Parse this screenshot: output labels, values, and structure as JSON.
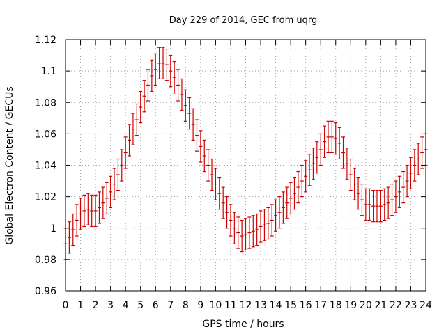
{
  "chart_data": {
    "type": "scatter",
    "title": "Day 229 of 2014, GEC from uqrg",
    "xlabel": "GPS time / hours",
    "ylabel": "Global Electron Content / GECUs",
    "xlim": [
      0,
      24
    ],
    "ylim": [
      0.96,
      1.12
    ],
    "xticks": [
      0,
      1,
      2,
      3,
      4,
      5,
      6,
      7,
      8,
      9,
      10,
      11,
      12,
      13,
      14,
      15,
      16,
      17,
      18,
      19,
      20,
      21,
      22,
      23,
      24
    ],
    "xtick_labels": [
      "0",
      "1",
      "2",
      "3",
      "4",
      "5",
      "6",
      "7",
      "8",
      "9",
      "10",
      "11",
      "12",
      "13",
      "14",
      "15",
      "16",
      "17",
      "18",
      "19",
      "20",
      "21",
      "22",
      "23",
      "24"
    ],
    "yticks": [
      0.96,
      0.98,
      1.0,
      1.02,
      1.04,
      1.06,
      1.08,
      1.1,
      1.12
    ],
    "ytick_labels": [
      "0.96",
      "0.98",
      "1",
      "1.02",
      "1.04",
      "1.06",
      "1.08",
      "1.1",
      "1.12"
    ],
    "grid": true,
    "error": 0.01,
    "series_color": "#cc0000",
    "x": [
      0,
      0.25,
      0.5,
      0.75,
      1,
      1.25,
      1.5,
      1.75,
      2,
      2.25,
      2.5,
      2.75,
      3,
      3.25,
      3.5,
      3.75,
      4,
      4.25,
      4.5,
      4.75,
      5,
      5.25,
      5.5,
      5.75,
      6,
      6.25,
      6.5,
      6.75,
      7,
      7.25,
      7.5,
      7.75,
      8,
      8.25,
      8.5,
      8.75,
      9,
      9.25,
      9.5,
      9.75,
      10,
      10.25,
      10.5,
      10.75,
      11,
      11.25,
      11.5,
      11.75,
      12,
      12.25,
      12.5,
      12.75,
      13,
      13.25,
      13.5,
      13.75,
      14,
      14.25,
      14.5,
      14.75,
      15,
      15.25,
      15.5,
      15.75,
      16,
      16.25,
      16.5,
      16.75,
      17,
      17.25,
      17.5,
      17.75,
      18,
      18.25,
      18.5,
      18.75,
      19,
      19.25,
      19.5,
      19.75,
      20,
      20.25,
      20.5,
      20.75,
      21,
      21.25,
      21.5,
      21.75,
      22,
      22.25,
      22.5,
      22.75,
      23,
      23.25,
      23.5,
      23.75,
      24
    ],
    "y": [
      0.99,
      0.994,
      0.999,
      1.005,
      1.009,
      1.011,
      1.012,
      1.011,
      1.011,
      1.013,
      1.016,
      1.019,
      1.023,
      1.028,
      1.034,
      1.04,
      1.048,
      1.056,
      1.063,
      1.069,
      1.077,
      1.084,
      1.091,
      1.097,
      1.101,
      1.105,
      1.105,
      1.104,
      1.1,
      1.096,
      1.091,
      1.085,
      1.078,
      1.073,
      1.066,
      1.059,
      1.052,
      1.046,
      1.04,
      1.034,
      1.028,
      1.022,
      1.016,
      1.01,
      1.005,
      1.0,
      0.997,
      0.995,
      0.996,
      0.997,
      0.998,
      0.999,
      1.001,
      1.002,
      1.003,
      1.005,
      1.008,
      1.01,
      1.013,
      1.016,
      1.019,
      1.022,
      1.026,
      1.03,
      1.033,
      1.037,
      1.041,
      1.045,
      1.05,
      1.055,
      1.058,
      1.058,
      1.057,
      1.054,
      1.048,
      1.041,
      1.034,
      1.028,
      1.022,
      1.018,
      1.015,
      1.015,
      1.014,
      1.014,
      1.014,
      1.015,
      1.016,
      1.018,
      1.02,
      1.023,
      1.026,
      1.03,
      1.035,
      1.04,
      1.044,
      1.048,
      1.05
    ]
  }
}
